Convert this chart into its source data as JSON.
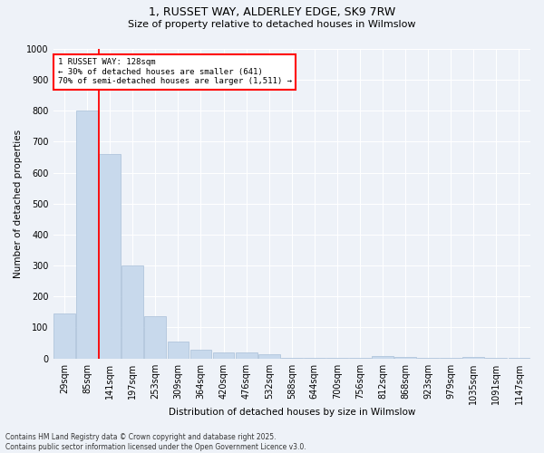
{
  "title_line1": "1, RUSSET WAY, ALDERLEY EDGE, SK9 7RW",
  "title_line2": "Size of property relative to detached houses in Wilmslow",
  "xlabel": "Distribution of detached houses by size in Wilmslow",
  "ylabel": "Number of detached properties",
  "bar_color": "#c8d9ec",
  "bar_edge_color": "#a8bfd8",
  "background_color": "#eef2f8",
  "grid_color": "#ffffff",
  "categories": [
    "29sqm",
    "85sqm",
    "141sqm",
    "197sqm",
    "253sqm",
    "309sqm",
    "364sqm",
    "420sqm",
    "476sqm",
    "532sqm",
    "588sqm",
    "644sqm",
    "700sqm",
    "756sqm",
    "812sqm",
    "868sqm",
    "923sqm",
    "979sqm",
    "1035sqm",
    "1091sqm",
    "1147sqm"
  ],
  "values": [
    145,
    800,
    660,
    300,
    135,
    55,
    28,
    18,
    18,
    14,
    2,
    2,
    2,
    2,
    8,
    5,
    2,
    2,
    4,
    2,
    2
  ],
  "red_line_index": 2,
  "annotation_line1": "1 RUSSET WAY: 128sqm",
  "annotation_line2": "← 30% of detached houses are smaller (641)",
  "annotation_line3": "70% of semi-detached houses are larger (1,511) →",
  "footer_line1": "Contains HM Land Registry data © Crown copyright and database right 2025.",
  "footer_line2": "Contains public sector information licensed under the Open Government Licence v3.0.",
  "ylim": [
    0,
    1000
  ],
  "yticks": [
    0,
    100,
    200,
    300,
    400,
    500,
    600,
    700,
    800,
    900,
    1000
  ],
  "title_fontsize": 9,
  "subtitle_fontsize": 8,
  "axis_label_fontsize": 7.5,
  "tick_fontsize": 7,
  "annotation_fontsize": 6.5,
  "footer_fontsize": 5.5
}
